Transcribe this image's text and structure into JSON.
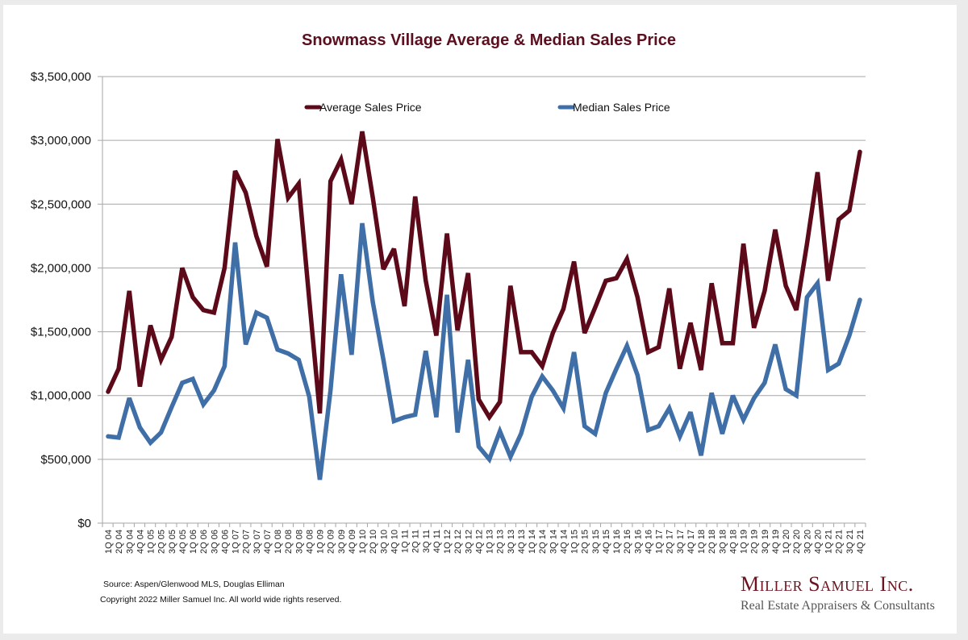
{
  "chart_data": {
    "type": "line",
    "title": "Snowmass Village Average & Median Sales Price",
    "xlabel": "",
    "ylabel": "",
    "ylim": [
      0,
      3500000
    ],
    "yticks": [
      0,
      500000,
      1000000,
      1500000,
      2000000,
      2500000,
      3000000,
      3500000
    ],
    "ytick_labels": [
      "$0",
      "$500,000",
      "$1,000,000",
      "$1,500,000",
      "$2,000,000",
      "$2,500,000",
      "$3,000,000",
      "$3,500,000"
    ],
    "grid": true,
    "legend_position": "top-center",
    "categories": [
      "1Q 04",
      "2Q 04",
      "3Q 04",
      "4Q 04",
      "1Q 05",
      "2Q 05",
      "3Q 05",
      "4Q 05",
      "1Q 06",
      "2Q 06",
      "3Q 06",
      "4Q 06",
      "1Q 07",
      "2Q 07",
      "3Q 07",
      "4Q 07",
      "1Q 08",
      "2Q 08",
      "3Q 08",
      "4Q 08",
      "1Q 09",
      "2Q 09",
      "3Q 09",
      "4Q 09",
      "1Q 10",
      "2Q 10",
      "3Q 10",
      "4Q 10",
      "1Q 11",
      "2Q 11",
      "3Q 11",
      "4Q 11",
      "1Q 12",
      "2Q 12",
      "3Q 12",
      "4Q 12",
      "1Q 13",
      "2Q 13",
      "3Q 13",
      "4Q 13",
      "1Q 14",
      "2Q 14",
      "3Q 14",
      "4Q 14",
      "1Q 15",
      "2Q 15",
      "3Q 15",
      "4Q 15",
      "1Q 16",
      "2Q 16",
      "3Q 16",
      "4Q 16",
      "1Q 17",
      "2Q 17",
      "3Q 17",
      "4Q 17",
      "1Q 18",
      "2Q 18",
      "3Q 18",
      "4Q 18",
      "1Q 19",
      "2Q 19",
      "3Q 19",
      "4Q 19",
      "1Q 20",
      "2Q 20",
      "3Q 20",
      "4Q 20",
      "1Q 21",
      "2Q 21",
      "3Q 21",
      "4Q 21"
    ],
    "series": [
      {
        "name": "Average Sales Price",
        "color": "#5c0a19",
        "values": [
          1030000,
          1210000,
          1820000,
          1070000,
          1550000,
          1280000,
          1460000,
          2000000,
          1770000,
          1670000,
          1650000,
          2000000,
          2760000,
          2590000,
          2250000,
          2010000,
          3010000,
          2550000,
          2660000,
          1750000,
          860000,
          2680000,
          2850000,
          2500000,
          3070000,
          2550000,
          1990000,
          2150000,
          1700000,
          2560000,
          1900000,
          1470000,
          2270000,
          1510000,
          1960000,
          970000,
          830000,
          950000,
          1860000,
          1340000,
          1340000,
          1230000,
          1490000,
          1680000,
          2050000,
          1490000,
          1690000,
          1900000,
          1920000,
          2070000,
          1770000,
          1340000,
          1380000,
          1840000,
          1210000,
          1570000,
          1200000,
          1880000,
          1410000,
          1410000,
          2190000,
          1530000,
          1820000,
          2300000,
          1860000,
          1670000,
          2190000,
          2750000,
          1900000,
          2380000,
          2450000,
          2910000
        ]
      },
      {
        "name": "Median Sales Price",
        "color": "#3f6fa6",
        "values": [
          680000,
          670000,
          980000,
          750000,
          630000,
          710000,
          910000,
          1100000,
          1130000,
          930000,
          1040000,
          1230000,
          2200000,
          1400000,
          1650000,
          1610000,
          1360000,
          1330000,
          1280000,
          990000,
          340000,
          1040000,
          1950000,
          1320000,
          2350000,
          1730000,
          1280000,
          800000,
          830000,
          850000,
          1350000,
          830000,
          1790000,
          710000,
          1280000,
          600000,
          500000,
          720000,
          520000,
          700000,
          990000,
          1150000,
          1040000,
          900000,
          1340000,
          760000,
          700000,
          1020000,
          1210000,
          1390000,
          1160000,
          730000,
          760000,
          900000,
          680000,
          870000,
          530000,
          1020000,
          700000,
          1000000,
          810000,
          980000,
          1100000,
          1400000,
          1050000,
          1000000,
          1770000,
          1880000,
          1200000,
          1250000,
          1470000,
          1750000
        ]
      }
    ]
  },
  "footer": {
    "source": "Source: Aspen/Glenwood MLS, Douglas Elliman",
    "copyright": "Copyright 2022 Miller Samuel Inc.  All world wide rights reserved."
  },
  "logo": {
    "title": "Miller Samuel Inc.",
    "subtitle": "Real Estate Appraisers & Consultants"
  }
}
